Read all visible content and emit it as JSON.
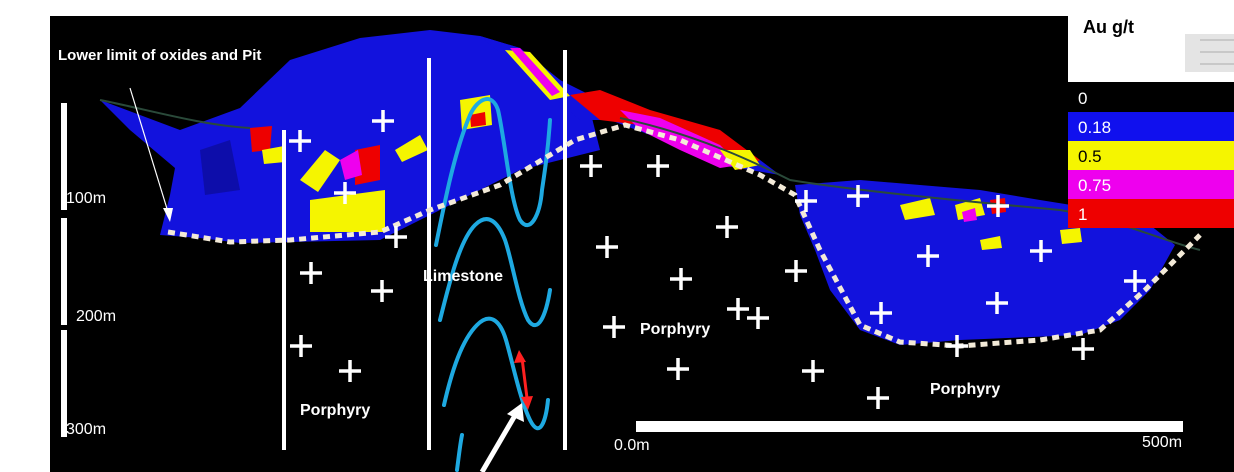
{
  "section": {
    "annotation": "Lower limit of oxides and Pit",
    "lithology": {
      "porphyry": "Porphyry",
      "limestone": "Limestone"
    },
    "depth_scale": [
      "100m",
      "200m",
      "300m"
    ],
    "horizontal_scale": {
      "start": "0.0m",
      "end": "500m"
    }
  },
  "legend": {
    "title": "Au g/t",
    "bins": [
      {
        "label": "0",
        "color": "#000000"
      },
      {
        "label": "0.18",
        "color": "#1010ee"
      },
      {
        "label": "0.5",
        "color": "#f5f500"
      },
      {
        "label": "0.75",
        "color": "#ee00ee"
      },
      {
        "label": "1",
        "color": "#ee0000"
      }
    ]
  },
  "colors": {
    "background": "#000000",
    "pit_line": "#f3ead8",
    "limestone_contact": "#1ea9e1",
    "arrow": "#ff2020"
  }
}
